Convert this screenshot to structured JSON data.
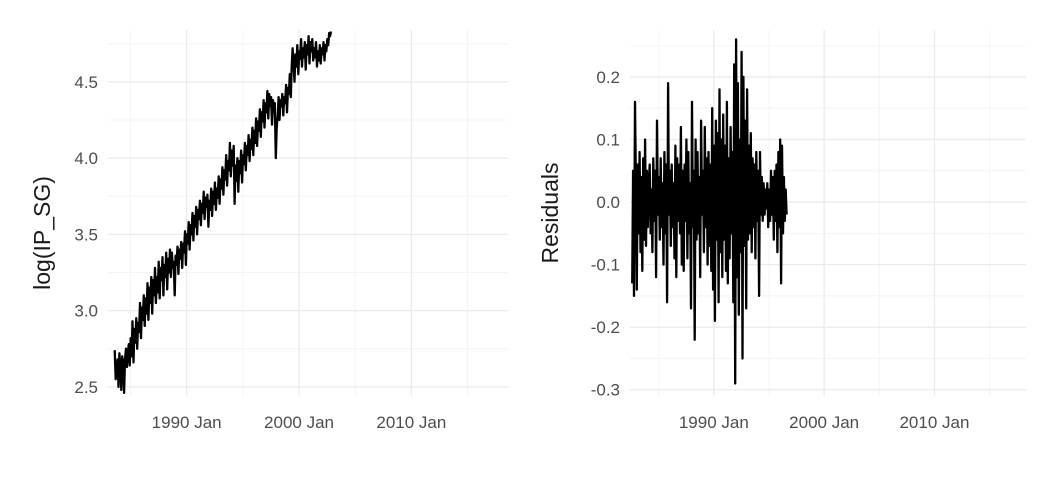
{
  "chart_data": [
    {
      "type": "line",
      "title": "",
      "xlabel": "",
      "ylabel": "log(IP_SG)",
      "xlim": [
        1983.0,
        2018.6
      ],
      "ylim": [
        2.44,
        4.84
      ],
      "x_major_ticks": [
        1990,
        2000,
        2010
      ],
      "x_minor_ticks": [
        1985,
        1995,
        2005,
        2015
      ],
      "x_tick_labels": [
        "1990 Jan",
        "2000 Jan",
        "2010 Jan"
      ],
      "y_major_ticks": [
        2.5,
        3.0,
        3.5,
        4.0,
        4.5
      ],
      "y_minor_ticks": [
        2.75,
        3.25,
        3.75,
        4.25,
        4.75
      ],
      "y_tick_labels": [
        "2.5",
        "3.0",
        "3.5",
        "4.0",
        "4.5"
      ],
      "grid": true,
      "series": [
        {
          "x_start": 1983.6,
          "x_step": 0.08333,
          "values": [
            2.74,
            2.55,
            2.62,
            2.68,
            2.5,
            2.72,
            2.63,
            2.48,
            2.7,
            2.66,
            2.46,
            2.68,
            2.75,
            2.63,
            2.72,
            2.78,
            2.64,
            2.82,
            2.7,
            2.93,
            2.66,
            2.88,
            2.79,
            2.95,
            2.75,
            2.92,
            2.86,
            3.05,
            2.82,
            3.02,
            2.94,
            3.1,
            2.9,
            3.08,
            2.98,
            3.18,
            2.94,
            3.15,
            3.05,
            3.22,
            2.98,
            3.2,
            3.1,
            3.28,
            3.05,
            3.22,
            3.12,
            3.32,
            3.08,
            3.28,
            3.2,
            3.35,
            3.1,
            3.3,
            3.22,
            3.38,
            3.14,
            3.34,
            3.25,
            3.4,
            3.22,
            3.38,
            3.28,
            3.32,
            3.1,
            3.36,
            3.3,
            3.42,
            3.24,
            3.4,
            3.34,
            3.45,
            3.28,
            3.44,
            3.38,
            3.52,
            3.3,
            3.5,
            3.44,
            3.58,
            3.4,
            3.56,
            3.5,
            3.64,
            3.46,
            3.62,
            3.55,
            3.68,
            3.5,
            3.66,
            3.6,
            3.72,
            3.56,
            3.7,
            3.64,
            3.78,
            3.6,
            3.74,
            3.68,
            3.76,
            3.55,
            3.72,
            3.66,
            3.8,
            3.62,
            3.78,
            3.7,
            3.84,
            3.66,
            3.8,
            3.74,
            3.88,
            3.7,
            3.86,
            3.8,
            3.94,
            3.76,
            3.92,
            3.86,
            4.02,
            3.82,
            3.98,
            3.92,
            4.1,
            3.88,
            4.05,
            3.95,
            4.08,
            3.7,
            3.95,
            3.85,
            4.0,
            3.78,
            3.98,
            3.9,
            4.05,
            3.84,
            4.02,
            3.96,
            4.1,
            3.92,
            4.08,
            4.02,
            4.15,
            3.98,
            4.12,
            4.06,
            4.2,
            4.02,
            4.18,
            4.1,
            4.26,
            4.08,
            4.24,
            4.18,
            4.32,
            4.14,
            4.3,
            4.24,
            4.38,
            4.2,
            4.36,
            4.3,
            4.44,
            4.26,
            4.42,
            4.34,
            4.4,
            4.22,
            4.38,
            4.3,
            4.36,
            4.0,
            4.2,
            4.28,
            4.4,
            4.25,
            4.38,
            4.34,
            4.42,
            4.28,
            4.4,
            4.36,
            4.48,
            4.3,
            4.46,
            4.42,
            4.55,
            4.4,
            4.6,
            4.72,
            4.62,
            4.5,
            4.68,
            4.6,
            4.74,
            4.55,
            4.7,
            4.65,
            4.78,
            4.6,
            4.72,
            4.66,
            4.76,
            4.58,
            4.74,
            4.68,
            4.8,
            4.62,
            4.76,
            4.7,
            4.78,
            4.64,
            4.72,
            4.66,
            4.76,
            4.6,
            4.7,
            4.64,
            4.74,
            4.62,
            4.72,
            4.68,
            4.76,
            4.64,
            4.74,
            4.7,
            4.78,
            4.74,
            4.82,
            4.8,
            4.83
          ]
        }
      ]
    },
    {
      "type": "line",
      "title": "",
      "xlabel": "",
      "ylabel": "Residuals",
      "xlim": [
        1982.4,
        2018.3
      ],
      "ylim": [
        -0.31,
        0.275
      ],
      "x_major_ticks": [
        1990,
        2000,
        2010
      ],
      "x_minor_ticks": [
        1985,
        1995,
        2005,
        2015
      ],
      "x_tick_labels": [
        "1990 Jan",
        "2000 Jan",
        "2010 Jan"
      ],
      "y_major_ticks": [
        -0.3,
        -0.2,
        -0.1,
        0.0,
        0.1,
        0.2
      ],
      "y_minor_ticks": [
        -0.25,
        -0.15,
        -0.05,
        0.05,
        0.15,
        0.25
      ],
      "y_tick_labels": [
        "-0.3",
        "-0.2",
        "-0.1",
        "0.0",
        "0.1",
        "0.2"
      ],
      "grid": true,
      "series": [
        {
          "x_start": 1982.6,
          "x_step": 0.08333,
          "values": [
            -0.13,
            0.05,
            -0.15,
            0.16,
            0.03,
            -0.14,
            0.06,
            -0.05,
            0.08,
            -0.08,
            0.04,
            -0.11,
            0.07,
            -0.06,
            0.1,
            -0.07,
            0.05,
            -0.04,
            0.03,
            0.06,
            -0.05,
            0.02,
            -0.08,
            0.07,
            -0.03,
            0.05,
            -0.12,
            0.13,
            -0.02,
            0.04,
            -0.06,
            0.07,
            -0.04,
            0.03,
            -0.1,
            0.08,
            -0.05,
            0.06,
            -0.16,
            0.19,
            -0.02,
            0.05,
            -0.07,
            0.06,
            -0.04,
            0.03,
            -0.09,
            0.09,
            -0.12,
            0.07,
            -0.03,
            0.06,
            -0.05,
            0.12,
            -0.1,
            0.05,
            -0.11,
            0.06,
            -0.03,
            0.1,
            -0.09,
            0.08,
            -0.05,
            0.03,
            -0.17,
            0.16,
            -0.04,
            0.05,
            -0.22,
            0.1,
            -0.06,
            0.08,
            -0.05,
            0.04,
            -0.12,
            0.13,
            -0.02,
            0.05,
            -0.08,
            0.12,
            -0.04,
            0.07,
            -0.1,
            0.08,
            -0.07,
            0.06,
            -0.11,
            0.15,
            -0.14,
            0.09,
            -0.19,
            0.13,
            -0.06,
            0.11,
            -0.16,
            0.18,
            -0.08,
            0.1,
            -0.12,
            0.14,
            -0.06,
            0.09,
            -0.11,
            0.16,
            -0.13,
            0.07,
            -0.09,
            0.12,
            -0.05,
            0.08,
            -0.16,
            0.22,
            -0.29,
            0.26,
            -0.12,
            0.19,
            -0.18,
            0.1,
            -0.08,
            0.24,
            -0.25,
            0.2,
            -0.07,
            0.13,
            -0.17,
            0.18,
            -0.06,
            0.09,
            -0.05,
            0.11,
            -0.08,
            0.07,
            -0.04,
            0.06,
            -0.09,
            0.08,
            -0.03,
            0.05,
            -0.15,
            0.08,
            -0.02,
            0.04,
            -0.03,
            0.03,
            -0.02,
            0.02,
            -0.01,
            0.03,
            -0.04,
            0.02,
            -0.03,
            0.05,
            -0.02,
            0.04,
            -0.06,
            0.05,
            -0.03,
            0.06,
            -0.08,
            0.08,
            -0.04,
            0.1,
            -0.13,
            0.09,
            -0.05,
            0.04,
            -0.03,
            0.02,
            -0.02
          ]
        }
      ]
    }
  ]
}
